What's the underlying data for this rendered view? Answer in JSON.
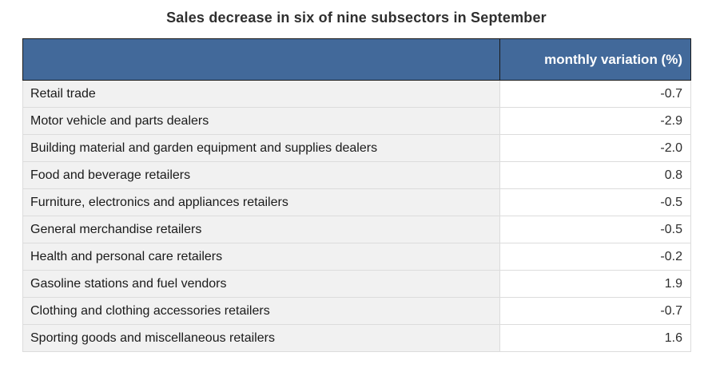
{
  "title": "Sales decrease in six of nine subsectors in September",
  "table": {
    "header": {
      "label_col": "",
      "value_col": "monthly variation (%)"
    },
    "rows": [
      {
        "label": "Retail trade",
        "value": "-0.7"
      },
      {
        "label": "Motor vehicle and parts dealers",
        "value": "-2.9"
      },
      {
        "label": "Building material and garden equipment and supplies dealers",
        "value": "-2.0"
      },
      {
        "label": "Food and beverage retailers",
        "value": "0.8"
      },
      {
        "label": "Furniture, electronics and appliances retailers",
        "value": "-0.5"
      },
      {
        "label": "General merchandise retailers",
        "value": "-0.5"
      },
      {
        "label": "Health and personal care retailers",
        "value": "-0.2"
      },
      {
        "label": "Gasoline stations and fuel vendors",
        "value": "1.9"
      },
      {
        "label": "Clothing and clothing accessories retailers",
        "value": "-0.7"
      },
      {
        "label": "Sporting goods and miscellaneous retailers",
        "value": "1.6"
      }
    ]
  },
  "colors": {
    "header_bg": "#42699a",
    "header_text": "#ffffff",
    "header_border": "#1b1b1b",
    "label_cell_bg": "#f1f1f1",
    "value_cell_bg": "#ffffff",
    "grid_border": "#dcdcdc",
    "title_text": "#2f2f2f",
    "body_text": "#1a1a1a"
  },
  "chart_data": {
    "type": "table",
    "title": "Sales decrease in six of nine subsectors in September",
    "columns": [
      "",
      "monthly variation (%)"
    ],
    "rows": [
      [
        "Retail trade",
        -0.7
      ],
      [
        "Motor vehicle and parts dealers",
        -2.9
      ],
      [
        "Building material and garden equipment and supplies dealers",
        -2.0
      ],
      [
        "Food and beverage retailers",
        0.8
      ],
      [
        "Furniture, electronics and appliances retailers",
        -0.5
      ],
      [
        "General merchandise retailers",
        -0.5
      ],
      [
        "Health and personal care retailers",
        -0.2
      ],
      [
        "Gasoline stations and fuel vendors",
        1.9
      ],
      [
        "Clothing and clothing accessories retailers",
        -0.7
      ],
      [
        "Sporting goods and miscellaneous retailers",
        1.6
      ]
    ]
  }
}
